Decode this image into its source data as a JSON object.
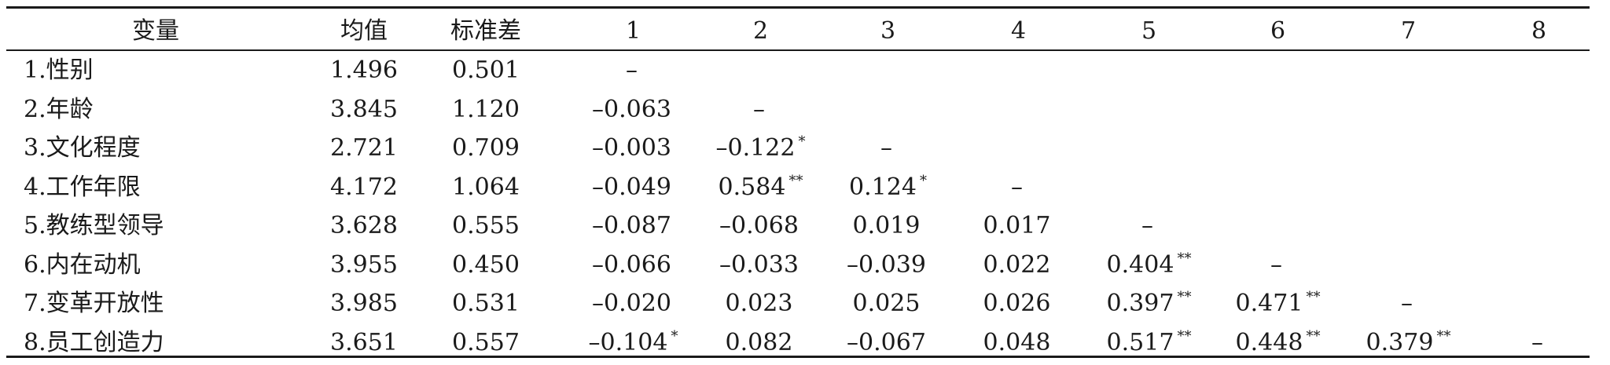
{
  "headers": [
    "变量",
    "均值",
    "标准差",
    "1",
    "2",
    "3",
    "4",
    "5",
    "6",
    "7",
    "8"
  ],
  "rows": [
    {
      "label": "1.性别",
      "mean": "1.496",
      "sd": "0.501",
      "c1": "–",
      "c1s": "",
      "c2": "",
      "c2s": "",
      "c3": "",
      "c3s": "",
      "c4": "",
      "c4s": "",
      "c5": "",
      "c5s": "",
      "c6": "",
      "c6s": "",
      "c7": "",
      "c7s": "",
      "c8": "",
      "c8s": ""
    },
    {
      "label": "2.年龄",
      "mean": "3.845",
      "sd": "1.120",
      "c1": "–0.063",
      "c1s": "",
      "c2": "–",
      "c2s": "",
      "c3": "",
      "c3s": "",
      "c4": "",
      "c4s": "",
      "c5": "",
      "c5s": "",
      "c6": "",
      "c6s": "",
      "c7": "",
      "c7s": "",
      "c8": "",
      "c8s": ""
    },
    {
      "label": "3.文化程度",
      "mean": "2.721",
      "sd": "0.709",
      "c1": "–0.003",
      "c1s": "",
      "c2": "–0.122",
      "c2s": "*",
      "c3": "–",
      "c3s": "",
      "c4": "",
      "c4s": "",
      "c5": "",
      "c5s": "",
      "c6": "",
      "c6s": "",
      "c7": "",
      "c7s": "",
      "c8": "",
      "c8s": ""
    },
    {
      "label": "4.工作年限",
      "mean": "4.172",
      "sd": "1.064",
      "c1": "–0.049",
      "c1s": "",
      "c2": "0.584",
      "c2s": "**",
      "c3": "0.124",
      "c3s": "*",
      "c4": "–",
      "c4s": "",
      "c5": "",
      "c5s": "",
      "c6": "",
      "c6s": "",
      "c7": "",
      "c7s": "",
      "c8": "",
      "c8s": ""
    },
    {
      "label": "5.教练型领导",
      "mean": "3.628",
      "sd": "0.555",
      "c1": "–0.087",
      "c1s": "",
      "c2": "–0.068",
      "c2s": "",
      "c3": "0.019",
      "c3s": "",
      "c4": "0.017",
      "c4s": "",
      "c5": "–",
      "c5s": "",
      "c6": "",
      "c6s": "",
      "c7": "",
      "c7s": "",
      "c8": "",
      "c8s": ""
    },
    {
      "label": "6.内在动机",
      "mean": "3.955",
      "sd": "0.450",
      "c1": "–0.066",
      "c1s": "",
      "c2": "–0.033",
      "c2s": "",
      "c3": "–0.039",
      "c3s": "",
      "c4": "0.022",
      "c4s": "",
      "c5": "0.404",
      "c5s": "**",
      "c6": "–",
      "c6s": "",
      "c7": "",
      "c7s": "",
      "c8": "",
      "c8s": ""
    },
    {
      "label": "7.变革开放性",
      "mean": "3.985",
      "sd": "0.531",
      "c1": "–0.020",
      "c1s": "",
      "c2": "0.023",
      "c2s": "",
      "c3": "0.025",
      "c3s": "",
      "c4": "0.026",
      "c4s": "",
      "c5": "0.397",
      "c5s": "**",
      "c6": "0.471",
      "c6s": "**",
      "c7": "–",
      "c7s": "",
      "c8": "",
      "c8s": ""
    },
    {
      "label": "8.员工创造力",
      "mean": "3.651",
      "sd": "0.557",
      "c1": "–0.104",
      "c1s": "*",
      "c2": "0.082",
      "c2s": "",
      "c3": "–0.067",
      "c3s": "",
      "c4": "0.048",
      "c4s": "",
      "c5": "0.517",
      "c5s": "**",
      "c6": "0.448",
      "c6s": "**",
      "c7": "0.379",
      "c7s": "**",
      "c8": "–",
      "c8s": ""
    }
  ]
}
